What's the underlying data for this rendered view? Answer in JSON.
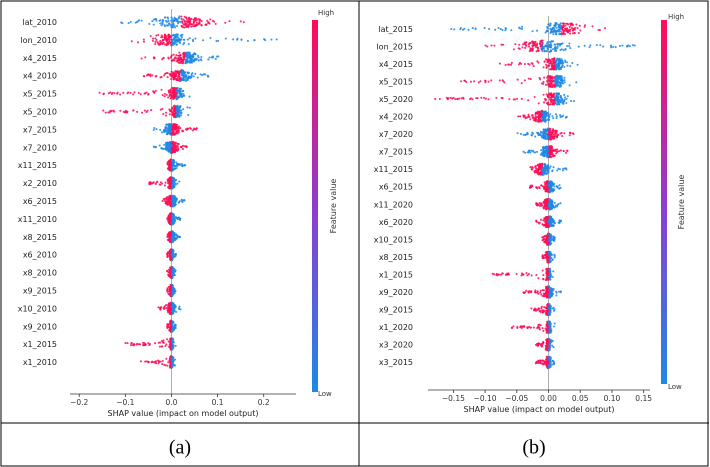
{
  "chart_data": [
    {
      "type": "scatter",
      "subtype": "shap-beeswarm",
      "caption": "(a)",
      "xlabel": "SHAP value (impact on model output)",
      "xlim": [
        -0.22,
        0.27
      ],
      "xticks": [
        -0.2,
        -0.1,
        0.0,
        0.1,
        0.2
      ],
      "xtick_labels": [
        "−0.2",
        "−0.1",
        "0.0",
        "0.1",
        "0.2"
      ],
      "colorbar": {
        "label": "Feature value",
        "high": "High",
        "low": "Low"
      },
      "features": [
        {
          "name": "lat_2010",
          "min": -0.13,
          "max": 0.18,
          "center": 0.02,
          "neg_color": "#1e88e5",
          "pos_color": "#ff0d57"
        },
        {
          "name": "lon_2010",
          "min": -0.09,
          "max": 0.25,
          "center": 0.0,
          "neg_color": "#ff0d57",
          "pos_color": "#1e88e5"
        },
        {
          "name": "x4_2015",
          "min": -0.07,
          "max": 0.11,
          "center": 0.03,
          "neg_color": "#ff0d57",
          "pos_color": "#1e88e5"
        },
        {
          "name": "x4_2010",
          "min": -0.06,
          "max": 0.09,
          "center": 0.02,
          "neg_color": "#ff0d57",
          "pos_color": "#1e88e5"
        },
        {
          "name": "x5_2015",
          "min": -0.16,
          "max": 0.05,
          "center": 0.01,
          "neg_color": "#ff0d57",
          "pos_color": "#1e88e5"
        },
        {
          "name": "x5_2010",
          "min": -0.15,
          "max": 0.04,
          "center": 0.01,
          "neg_color": "#ff0d57",
          "pos_color": "#1e88e5"
        },
        {
          "name": "x7_2015",
          "min": -0.04,
          "max": 0.06,
          "center": 0.0,
          "neg_color": "#1e88e5",
          "pos_color": "#ff0d57"
        },
        {
          "name": "x7_2010",
          "min": -0.04,
          "max": 0.04,
          "center": 0.0,
          "neg_color": "#1e88e5",
          "pos_color": "#ff0d57"
        },
        {
          "name": "x11_2015",
          "min": -0.01,
          "max": 0.03,
          "center": 0.0,
          "neg_color": "#ff0d57",
          "pos_color": "#1e88e5"
        },
        {
          "name": "x2_2010",
          "min": -0.05,
          "max": 0.02,
          "center": 0.0,
          "neg_color": "#ff0d57",
          "pos_color": "#1e88e5"
        },
        {
          "name": "x6_2015",
          "min": -0.02,
          "max": 0.03,
          "center": 0.0,
          "neg_color": "#ff0d57",
          "pos_color": "#1e88e5"
        },
        {
          "name": "x11_2010",
          "min": -0.01,
          "max": 0.02,
          "center": 0.0,
          "neg_color": "#ff0d57",
          "pos_color": "#1e88e5"
        },
        {
          "name": "x8_2015",
          "min": -0.01,
          "max": 0.02,
          "center": 0.0,
          "neg_color": "#ff0d57",
          "pos_color": "#1e88e5"
        },
        {
          "name": "x6_2010",
          "min": -0.01,
          "max": 0.01,
          "center": 0.0,
          "neg_color": "#ff0d57",
          "pos_color": "#1e88e5"
        },
        {
          "name": "x8_2010",
          "min": -0.01,
          "max": 0.01,
          "center": 0.0,
          "neg_color": "#ff0d57",
          "pos_color": "#1e88e5"
        },
        {
          "name": "x9_2015",
          "min": -0.01,
          "max": 0.01,
          "center": 0.0,
          "neg_color": "#ff0d57",
          "pos_color": "#1e88e5"
        },
        {
          "name": "x10_2010",
          "min": -0.03,
          "max": 0.02,
          "center": 0.0,
          "neg_color": "#ff0d57",
          "pos_color": "#1e88e5"
        },
        {
          "name": "x9_2010",
          "min": -0.01,
          "max": 0.01,
          "center": 0.0,
          "neg_color": "#ff0d57",
          "pos_color": "#1e88e5"
        },
        {
          "name": "x1_2015",
          "min": -0.1,
          "max": 0.01,
          "center": 0.0,
          "neg_color": "#ff0d57",
          "pos_color": "#1e88e5"
        },
        {
          "name": "x1_2010",
          "min": -0.07,
          "max": 0.01,
          "center": 0.0,
          "neg_color": "#ff0d57",
          "pos_color": "#1e88e5"
        }
      ]
    },
    {
      "type": "scatter",
      "subtype": "shap-beeswarm",
      "caption": "(b)",
      "xlabel": "SHAP value (impact on model output)",
      "xlim": [
        -0.19,
        0.16
      ],
      "xticks": [
        -0.15,
        -0.1,
        -0.05,
        0.0,
        0.05,
        0.1,
        0.15
      ],
      "xtick_labels": [
        "−0.15",
        "−0.10",
        "−0.05",
        "0.00",
        "0.05",
        "0.10",
        "0.15"
      ],
      "colorbar": {
        "label": "Feature value",
        "high": "High",
        "low": "Low"
      },
      "features": [
        {
          "name": "lat_2015",
          "min": -0.16,
          "max": 0.09,
          "center": 0.02,
          "neg_color": "#1e88e5",
          "pos_color": "#ff0d57"
        },
        {
          "name": "lon_2015",
          "min": -0.1,
          "max": 0.14,
          "center": -0.01,
          "neg_color": "#ff0d57",
          "pos_color": "#1e88e5"
        },
        {
          "name": "x4_2015",
          "min": -0.08,
          "max": 0.05,
          "center": 0.01,
          "neg_color": "#ff0d57",
          "pos_color": "#1e88e5"
        },
        {
          "name": "x5_2015",
          "min": -0.15,
          "max": 0.05,
          "center": 0.01,
          "neg_color": "#ff0d57",
          "pos_color": "#1e88e5"
        },
        {
          "name": "x5_2020",
          "min": -0.18,
          "max": 0.05,
          "center": 0.01,
          "neg_color": "#ff0d57",
          "pos_color": "#1e88e5"
        },
        {
          "name": "x4_2020",
          "min": -0.05,
          "max": 0.03,
          "center": -0.01,
          "neg_color": "#ff0d57",
          "pos_color": "#1e88e5"
        },
        {
          "name": "x7_2020",
          "min": -0.05,
          "max": 0.04,
          "center": 0.0,
          "neg_color": "#1e88e5",
          "pos_color": "#ff0d57"
        },
        {
          "name": "x7_2015",
          "min": -0.04,
          "max": 0.03,
          "center": 0.0,
          "neg_color": "#1e88e5",
          "pos_color": "#ff0d57"
        },
        {
          "name": "x11_2015",
          "min": -0.03,
          "max": 0.03,
          "center": -0.01,
          "neg_color": "#ff0d57",
          "pos_color": "#1e88e5"
        },
        {
          "name": "x6_2015",
          "min": -0.03,
          "max": 0.02,
          "center": 0.0,
          "neg_color": "#ff0d57",
          "pos_color": "#1e88e5"
        },
        {
          "name": "x11_2020",
          "min": -0.02,
          "max": 0.02,
          "center": 0.0,
          "neg_color": "#ff0d57",
          "pos_color": "#1e88e5"
        },
        {
          "name": "x6_2020",
          "min": -0.02,
          "max": 0.02,
          "center": 0.0,
          "neg_color": "#ff0d57",
          "pos_color": "#1e88e5"
        },
        {
          "name": "x10_2015",
          "min": -0.01,
          "max": 0.01,
          "center": 0.0,
          "neg_color": "#ff0d57",
          "pos_color": "#1e88e5"
        },
        {
          "name": "x8_2015",
          "min": -0.01,
          "max": 0.01,
          "center": 0.0,
          "neg_color": "#ff0d57",
          "pos_color": "#1e88e5"
        },
        {
          "name": "x1_2015",
          "min": -0.09,
          "max": 0.01,
          "center": 0.0,
          "neg_color": "#ff0d57",
          "pos_color": "#1e88e5"
        },
        {
          "name": "x9_2020",
          "min": -0.04,
          "max": 0.02,
          "center": 0.0,
          "neg_color": "#ff0d57",
          "pos_color": "#1e88e5"
        },
        {
          "name": "x9_2015",
          "min": -0.03,
          "max": 0.01,
          "center": 0.0,
          "neg_color": "#ff0d57",
          "pos_color": "#1e88e5"
        },
        {
          "name": "x1_2020",
          "min": -0.06,
          "max": 0.01,
          "center": 0.0,
          "neg_color": "#ff0d57",
          "pos_color": "#1e88e5"
        },
        {
          "name": "x3_2020",
          "min": -0.02,
          "max": 0.01,
          "center": 0.0,
          "neg_color": "#ff0d57",
          "pos_color": "#1e88e5"
        },
        {
          "name": "x3_2015",
          "min": -0.02,
          "max": 0.01,
          "center": 0.0,
          "neg_color": "#ff0d57",
          "pos_color": "#1e88e5"
        }
      ]
    }
  ]
}
